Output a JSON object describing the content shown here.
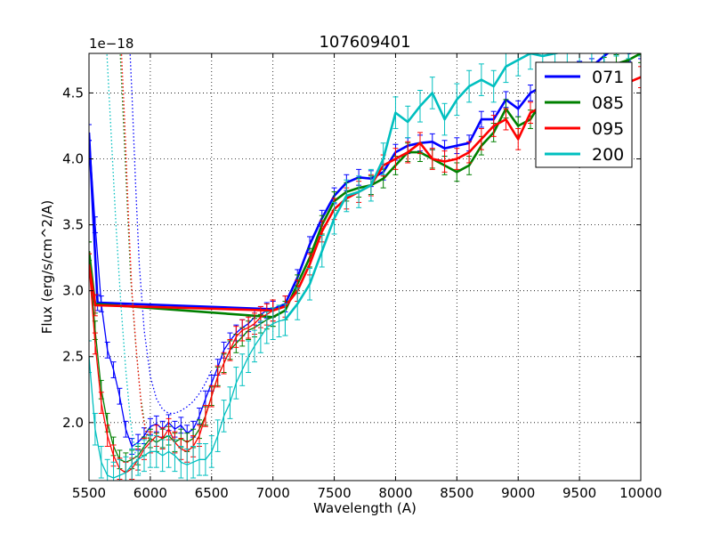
{
  "chart_data": {
    "type": "line",
    "title": "107609401",
    "xlabel": "Wavelength (A)",
    "ylabel": "Flux (erg/s/cm^2/A)",
    "offset_text": "1e−18",
    "xlim": [
      5500,
      10000
    ],
    "ylim": [
      1.56,
      4.8
    ],
    "xticks": [
      5500,
      6000,
      6500,
      7000,
      7500,
      8000,
      8500,
      9000,
      9500,
      10000
    ],
    "xtick_labels": [
      "5500",
      "6000",
      "6500",
      "7000",
      "7500",
      "8000",
      "8500",
      "9000",
      "9500",
      "10000"
    ],
    "yticks": [
      2.0,
      2.5,
      3.0,
      3.5,
      4.0,
      4.5
    ],
    "ytick_labels": [
      "2.0",
      "2.5",
      "3.0",
      "3.5",
      "4.0",
      "4.5"
    ],
    "grid": true,
    "legend_position": "top-right",
    "series": [
      {
        "name": "071",
        "color": "#0000ff",
        "thick_points": [
          [
            5500,
            4.2
          ],
          [
            5570,
            2.91
          ],
          [
            7000,
            2.86
          ],
          [
            7100,
            2.9
          ],
          [
            7200,
            3.1
          ],
          [
            7300,
            3.35
          ],
          [
            7400,
            3.55
          ],
          [
            7500,
            3.72
          ],
          [
            7600,
            3.82
          ],
          [
            7700,
            3.86
          ],
          [
            7800,
            3.85
          ],
          [
            7900,
            3.9
          ],
          [
            8000,
            4.05
          ],
          [
            8100,
            4.1
          ],
          [
            8200,
            4.12
          ],
          [
            8300,
            4.13
          ],
          [
            8400,
            4.08
          ],
          [
            8500,
            4.1
          ],
          [
            8600,
            4.12
          ],
          [
            8700,
            4.3
          ],
          [
            8800,
            4.3
          ],
          [
            8900,
            4.45
          ],
          [
            9000,
            4.38
          ],
          [
            9100,
            4.5
          ],
          [
            9200,
            4.55
          ],
          [
            9300,
            4.62
          ],
          [
            9400,
            4.6
          ],
          [
            9500,
            4.68
          ],
          [
            9600,
            4.7
          ],
          [
            9700,
            4.78
          ],
          [
            9800,
            4.85
          ],
          [
            9900,
            4.8
          ],
          [
            10000,
            4.82
          ]
        ],
        "thin_points": [
          [
            5500,
            4.2
          ],
          [
            5550,
            3.5
          ],
          [
            5600,
            2.9
          ],
          [
            5650,
            2.55
          ],
          [
            5700,
            2.4
          ],
          [
            5750,
            2.2
          ],
          [
            5800,
            1.95
          ],
          [
            5850,
            1.82
          ],
          [
            5900,
            1.85
          ],
          [
            5950,
            1.9
          ],
          [
            6000,
            1.97
          ],
          [
            6050,
            1.99
          ],
          [
            6100,
            1.95
          ],
          [
            6150,
            2.0
          ],
          [
            6200,
            1.95
          ],
          [
            6250,
            1.98
          ],
          [
            6300,
            1.92
          ],
          [
            6350,
            1.95
          ],
          [
            6400,
            2.05
          ],
          [
            6450,
            2.18
          ],
          [
            6500,
            2.3
          ],
          [
            6550,
            2.42
          ],
          [
            6600,
            2.55
          ],
          [
            6650,
            2.62
          ],
          [
            6700,
            2.68
          ],
          [
            6750,
            2.72
          ],
          [
            6800,
            2.75
          ],
          [
            6850,
            2.8
          ],
          [
            6900,
            2.82
          ],
          [
            6950,
            2.85
          ],
          [
            7000,
            2.86
          ]
        ],
        "dotted_points": [
          [
            5830,
            4.9
          ],
          [
            5850,
            4.5
          ],
          [
            5880,
            3.8
          ],
          [
            5910,
            3.2
          ],
          [
            5950,
            2.7
          ],
          [
            6000,
            2.35
          ],
          [
            6050,
            2.18
          ],
          [
            6100,
            2.1
          ],
          [
            6150,
            2.07
          ],
          [
            6200,
            2.07
          ],
          [
            6250,
            2.09
          ],
          [
            6300,
            2.12
          ],
          [
            6350,
            2.16
          ],
          [
            6400,
            2.22
          ],
          [
            6450,
            2.3
          ],
          [
            6500,
            2.4
          ]
        ],
        "error": 0.06
      },
      {
        "name": "085",
        "color": "#008000",
        "thick_points": [
          [
            5500,
            3.3
          ],
          [
            5550,
            2.9
          ],
          [
            7000,
            2.8
          ],
          [
            7100,
            2.85
          ],
          [
            7200,
            3.05
          ],
          [
            7300,
            3.25
          ],
          [
            7400,
            3.5
          ],
          [
            7500,
            3.68
          ],
          [
            7600,
            3.75
          ],
          [
            7700,
            3.78
          ],
          [
            7800,
            3.8
          ],
          [
            7900,
            3.85
          ],
          [
            8000,
            3.95
          ],
          [
            8100,
            4.05
          ],
          [
            8200,
            4.05
          ],
          [
            8300,
            4.0
          ],
          [
            8400,
            3.95
          ],
          [
            8500,
            3.9
          ],
          [
            8600,
            3.95
          ],
          [
            8700,
            4.1
          ],
          [
            8800,
            4.2
          ],
          [
            8900,
            4.38
          ],
          [
            9000,
            4.25
          ],
          [
            9100,
            4.3
          ],
          [
            9200,
            4.45
          ],
          [
            9300,
            4.5
          ],
          [
            9400,
            4.52
          ],
          [
            9500,
            4.6
          ],
          [
            9600,
            4.65
          ],
          [
            9700,
            4.7
          ],
          [
            9800,
            4.72
          ],
          [
            9900,
            4.75
          ],
          [
            10000,
            4.8
          ]
        ],
        "thin_points": [
          [
            5500,
            3.3
          ],
          [
            5550,
            2.7
          ],
          [
            5600,
            2.25
          ],
          [
            5650,
            2.0
          ],
          [
            5700,
            1.82
          ],
          [
            5750,
            1.72
          ],
          [
            5800,
            1.7
          ],
          [
            5850,
            1.72
          ],
          [
            5900,
            1.75
          ],
          [
            5950,
            1.82
          ],
          [
            6000,
            1.88
          ],
          [
            6050,
            1.85
          ],
          [
            6100,
            1.88
          ],
          [
            6150,
            1.9
          ],
          [
            6200,
            1.85
          ],
          [
            6250,
            1.88
          ],
          [
            6300,
            1.85
          ],
          [
            6350,
            1.88
          ],
          [
            6400,
            1.95
          ],
          [
            6450,
            2.05
          ],
          [
            6500,
            2.2
          ],
          [
            6550,
            2.35
          ],
          [
            6600,
            2.45
          ],
          [
            6650,
            2.55
          ],
          [
            6700,
            2.6
          ],
          [
            6750,
            2.65
          ],
          [
            6800,
            2.7
          ],
          [
            6850,
            2.72
          ],
          [
            6900,
            2.75
          ],
          [
            6950,
            2.78
          ],
          [
            7000,
            2.8
          ]
        ],
        "dotted_points": [
          [
            5750,
            4.9
          ],
          [
            5780,
            4.3
          ],
          [
            5810,
            3.7
          ],
          [
            5840,
            3.1
          ],
          [
            5880,
            2.6
          ],
          [
            5920,
            2.2
          ],
          [
            5960,
            1.95
          ],
          [
            6000,
            1.85
          ]
        ],
        "error": 0.07
      },
      {
        "name": "095",
        "color": "#ff0000",
        "thick_points": [
          [
            5500,
            3.2
          ],
          [
            5550,
            2.89
          ],
          [
            7000,
            2.85
          ],
          [
            7100,
            2.88
          ],
          [
            7200,
            3.0
          ],
          [
            7300,
            3.2
          ],
          [
            7400,
            3.45
          ],
          [
            7500,
            3.62
          ],
          [
            7600,
            3.7
          ],
          [
            7700,
            3.75
          ],
          [
            7800,
            3.8
          ],
          [
            7900,
            3.95
          ],
          [
            8000,
            4.0
          ],
          [
            8100,
            4.05
          ],
          [
            8200,
            4.12
          ],
          [
            8300,
            4.0
          ],
          [
            8400,
            3.98
          ],
          [
            8500,
            4.0
          ],
          [
            8600,
            4.05
          ],
          [
            8700,
            4.15
          ],
          [
            8800,
            4.25
          ],
          [
            8900,
            4.3
          ],
          [
            9000,
            4.15
          ],
          [
            9100,
            4.35
          ],
          [
            9200,
            4.4
          ],
          [
            9300,
            4.48
          ],
          [
            9400,
            4.5
          ],
          [
            9500,
            4.55
          ],
          [
            9600,
            4.6
          ],
          [
            9700,
            4.62
          ],
          [
            9800,
            4.65
          ],
          [
            9900,
            4.58
          ],
          [
            10000,
            4.62
          ]
        ],
        "thin_points": [
          [
            5500,
            3.2
          ],
          [
            5550,
            2.6
          ],
          [
            5600,
            2.15
          ],
          [
            5650,
            1.9
          ],
          [
            5700,
            1.75
          ],
          [
            5750,
            1.65
          ],
          [
            5800,
            1.62
          ],
          [
            5850,
            1.65
          ],
          [
            5900,
            1.72
          ],
          [
            5950,
            1.8
          ],
          [
            6000,
            1.85
          ],
          [
            6050,
            1.9
          ],
          [
            6100,
            1.88
          ],
          [
            6150,
            1.95
          ],
          [
            6200,
            1.85
          ],
          [
            6250,
            1.8
          ],
          [
            6300,
            1.78
          ],
          [
            6350,
            1.82
          ],
          [
            6400,
            1.9
          ],
          [
            6450,
            2.05
          ],
          [
            6500,
            2.2
          ],
          [
            6550,
            2.35
          ],
          [
            6600,
            2.45
          ],
          [
            6650,
            2.55
          ],
          [
            6700,
            2.65
          ],
          [
            6750,
            2.7
          ],
          [
            6800,
            2.72
          ],
          [
            6850,
            2.75
          ],
          [
            6900,
            2.8
          ],
          [
            6950,
            2.82
          ],
          [
            7000,
            2.85
          ]
        ],
        "dotted_points": [
          [
            5760,
            4.9
          ],
          [
            5790,
            4.3
          ],
          [
            5820,
            3.6
          ],
          [
            5850,
            3.0
          ],
          [
            5890,
            2.5
          ],
          [
            5930,
            2.1
          ],
          [
            5970,
            1.9
          ],
          [
            6000,
            1.85
          ]
        ],
        "error": 0.08
      },
      {
        "name": "200",
        "color": "#00bfbf",
        "thick_points": [
          [
            7100,
            2.78
          ],
          [
            7200,
            2.9
          ],
          [
            7300,
            3.05
          ],
          [
            7400,
            3.3
          ],
          [
            7500,
            3.55
          ],
          [
            7600,
            3.72
          ],
          [
            7700,
            3.75
          ],
          [
            7800,
            3.8
          ],
          [
            7900,
            4.0
          ],
          [
            8000,
            4.35
          ],
          [
            8100,
            4.28
          ],
          [
            8200,
            4.4
          ],
          [
            8300,
            4.5
          ],
          [
            8400,
            4.3
          ],
          [
            8500,
            4.45
          ],
          [
            8600,
            4.55
          ],
          [
            8700,
            4.6
          ],
          [
            8800,
            4.55
          ],
          [
            8900,
            4.7
          ],
          [
            9000,
            4.75
          ],
          [
            9100,
            4.8
          ],
          [
            9200,
            4.78
          ],
          [
            9300,
            4.8
          ],
          [
            9400,
            4.82
          ],
          [
            9500,
            4.85
          ],
          [
            9600,
            4.85
          ],
          [
            9700,
            4.85
          ],
          [
            9800,
            4.9
          ],
          [
            9900,
            4.88
          ],
          [
            10000,
            4.9
          ]
        ],
        "thin_points": [
          [
            5500,
            2.5
          ],
          [
            5550,
            1.95
          ],
          [
            5600,
            1.7
          ],
          [
            5650,
            1.6
          ],
          [
            5700,
            1.58
          ],
          [
            5750,
            1.6
          ],
          [
            5800,
            1.62
          ],
          [
            5850,
            1.68
          ],
          [
            5900,
            1.72
          ],
          [
            5950,
            1.75
          ],
          [
            6000,
            1.78
          ],
          [
            6050,
            1.78
          ],
          [
            6100,
            1.75
          ],
          [
            6150,
            1.78
          ],
          [
            6200,
            1.75
          ],
          [
            6250,
            1.7
          ],
          [
            6300,
            1.68
          ],
          [
            6350,
            1.7
          ],
          [
            6400,
            1.72
          ],
          [
            6450,
            1.72
          ],
          [
            6500,
            1.78
          ],
          [
            6550,
            1.9
          ],
          [
            6600,
            2.05
          ],
          [
            6650,
            2.15
          ],
          [
            6700,
            2.3
          ],
          [
            6750,
            2.4
          ],
          [
            6800,
            2.5
          ],
          [
            6850,
            2.58
          ],
          [
            6900,
            2.65
          ],
          [
            6950,
            2.72
          ],
          [
            7000,
            2.75
          ],
          [
            7050,
            2.77
          ],
          [
            7100,
            2.78
          ]
        ],
        "dotted_points": [
          [
            5640,
            4.9
          ],
          [
            5680,
            4.2
          ],
          [
            5720,
            3.5
          ],
          [
            5760,
            2.9
          ],
          [
            5800,
            2.4
          ],
          [
            5840,
            2.0
          ],
          [
            5880,
            1.75
          ],
          [
            5920,
            1.6
          ]
        ],
        "error": 0.12
      }
    ]
  }
}
